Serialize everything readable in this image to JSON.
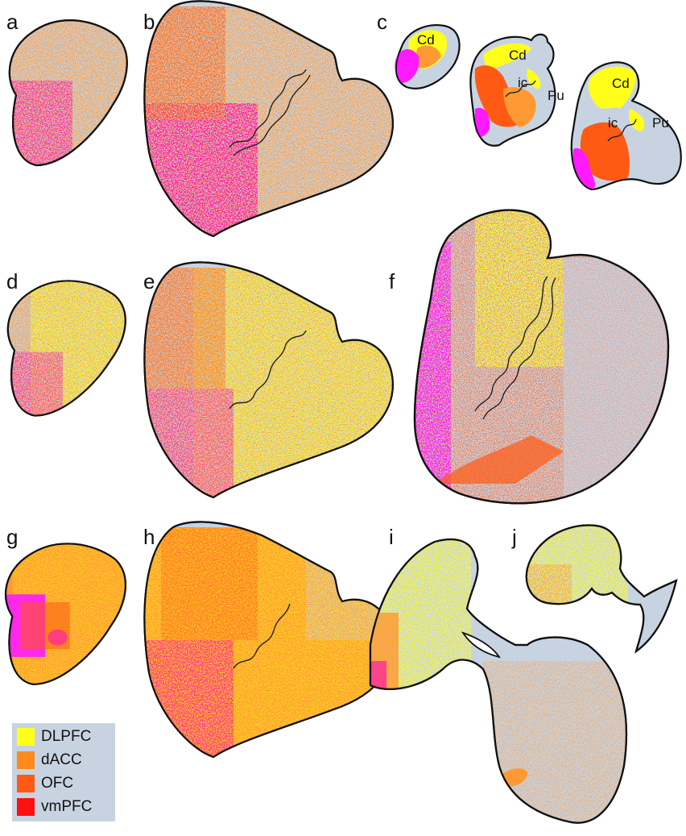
{
  "panels": {
    "a": "a",
    "b": "b",
    "c": "c",
    "d": "d",
    "e": "e",
    "f": "f",
    "g": "g",
    "h": "h",
    "i": "i",
    "j": "j"
  },
  "structure_labels": {
    "cd1": "Cd",
    "cd2": "Cd",
    "ic2": "ic",
    "pu2": "Pu",
    "cd3": "Cd",
    "ic3": "ic",
    "pu3": "Pu"
  },
  "legend": {
    "items": [
      {
        "label": "DLPFC",
        "color": "#ffff1a"
      },
      {
        "label": "dACC",
        "color": "#ff8c1a"
      },
      {
        "label": "OFC",
        "color": "#ff5a14"
      },
      {
        "label": "vmPFC",
        "color": "#ff1010"
      }
    ]
  },
  "colors": {
    "background_tissue": "#c8d3e2",
    "vmPFC_magenta": "#ff1aa8",
    "dlpfc_yellow": "#ffff1a",
    "dacc_orange": "#ff9933",
    "ofc_orange": "#ff5a14"
  }
}
